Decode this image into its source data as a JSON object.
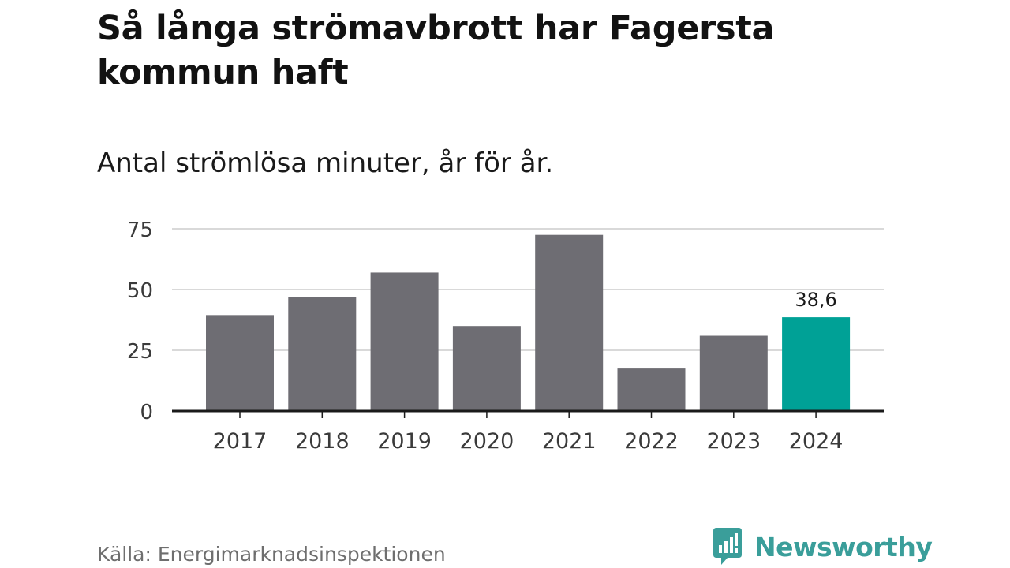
{
  "header": {
    "title": "Så långa strömavbrott har Fagersta kommun haft",
    "subtitle": "Antal strömlösa minuter, år för år."
  },
  "footer": {
    "source": "Källa: Energimarknadsinspektionen",
    "brand": "Newsworthy"
  },
  "colors": {
    "bar": "#6e6d73",
    "highlight": "#00a196",
    "grid": "#d9d9d9",
    "axis": "#1a1a1a",
    "brand": "#3a9e9a"
  },
  "chart_data": {
    "type": "bar",
    "title": "Så långa strömavbrott har Fagersta kommun haft",
    "subtitle": "Antal strömlösa minuter, år för år.",
    "xlabel": "",
    "ylabel": "",
    "categories": [
      "2017",
      "2018",
      "2019",
      "2020",
      "2021",
      "2022",
      "2023",
      "2024"
    ],
    "values": [
      39.5,
      47,
      57,
      35,
      72.5,
      17.5,
      31,
      38.6
    ],
    "highlight_index": 7,
    "data_labels": [
      {
        "index": 7,
        "text": "38,6"
      }
    ],
    "ylim": [
      0,
      75
    ],
    "yticks": [
      0,
      25,
      50,
      75
    ],
    "ytick_labels": [
      "0",
      "25",
      "50",
      "75"
    ],
    "grid": true,
    "legend": "none"
  }
}
